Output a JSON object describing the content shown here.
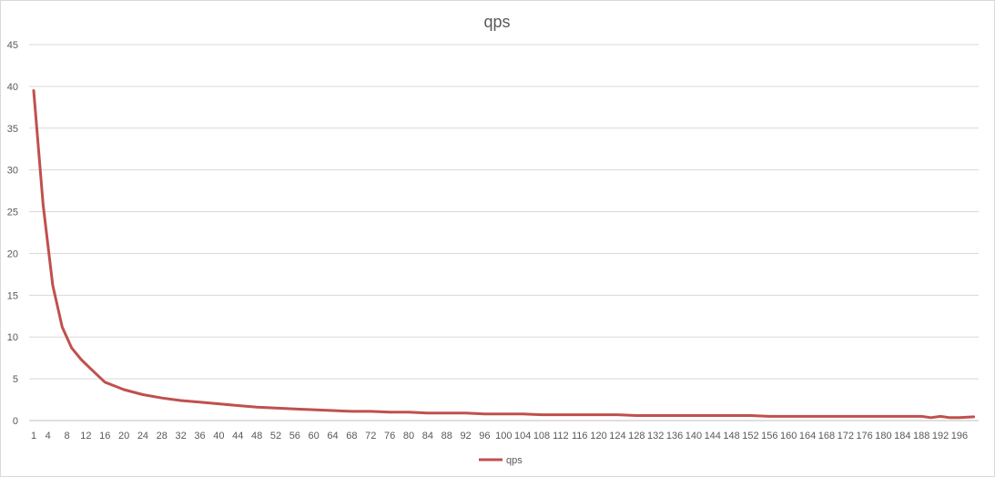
{
  "chart_data": {
    "type": "line",
    "title": "qps",
    "xlabel": "",
    "ylabel": "",
    "ylim": [
      0,
      45
    ],
    "yticks": [
      0,
      5,
      10,
      15,
      20,
      25,
      30,
      35,
      40,
      45
    ],
    "x_tick_labels": [
      1,
      4,
      8,
      12,
      16,
      20,
      24,
      28,
      32,
      36,
      40,
      44,
      48,
      52,
      56,
      60,
      64,
      68,
      72,
      76,
      80,
      84,
      88,
      92,
      96,
      100,
      104,
      108,
      112,
      116,
      120,
      124,
      128,
      132,
      136,
      140,
      144,
      148,
      152,
      156,
      160,
      164,
      168,
      172,
      176,
      180,
      184,
      188,
      192,
      196
    ],
    "xlim": [
      1,
      200
    ],
    "grid": "horizontal",
    "legend_position": "bottom",
    "series": [
      {
        "name": "qps",
        "color": "#c0504d",
        "x": [
          1,
          3,
          5,
          7,
          9,
          11,
          13,
          16,
          20,
          24,
          28,
          32,
          36,
          40,
          44,
          48,
          52,
          56,
          60,
          64,
          68,
          72,
          76,
          80,
          84,
          88,
          92,
          96,
          100,
          104,
          108,
          112,
          116,
          120,
          124,
          128,
          132,
          136,
          140,
          144,
          148,
          152,
          156,
          160,
          164,
          168,
          172,
          176,
          180,
          184,
          188,
          190,
          192,
          194,
          196,
          199
        ],
        "values": [
          39.5,
          25.8,
          16.2,
          11.2,
          8.7,
          7.3,
          6.2,
          4.6,
          3.7,
          3.1,
          2.7,
          2.4,
          2.2,
          2.0,
          1.8,
          1.6,
          1.5,
          1.4,
          1.3,
          1.2,
          1.1,
          1.1,
          1.0,
          1.0,
          0.9,
          0.9,
          0.9,
          0.8,
          0.8,
          0.8,
          0.7,
          0.7,
          0.7,
          0.7,
          0.7,
          0.6,
          0.6,
          0.6,
          0.6,
          0.6,
          0.6,
          0.6,
          0.5,
          0.5,
          0.5,
          0.5,
          0.5,
          0.5,
          0.5,
          0.5,
          0.5,
          0.35,
          0.5,
          0.35,
          0.35,
          0.45
        ]
      }
    ]
  }
}
